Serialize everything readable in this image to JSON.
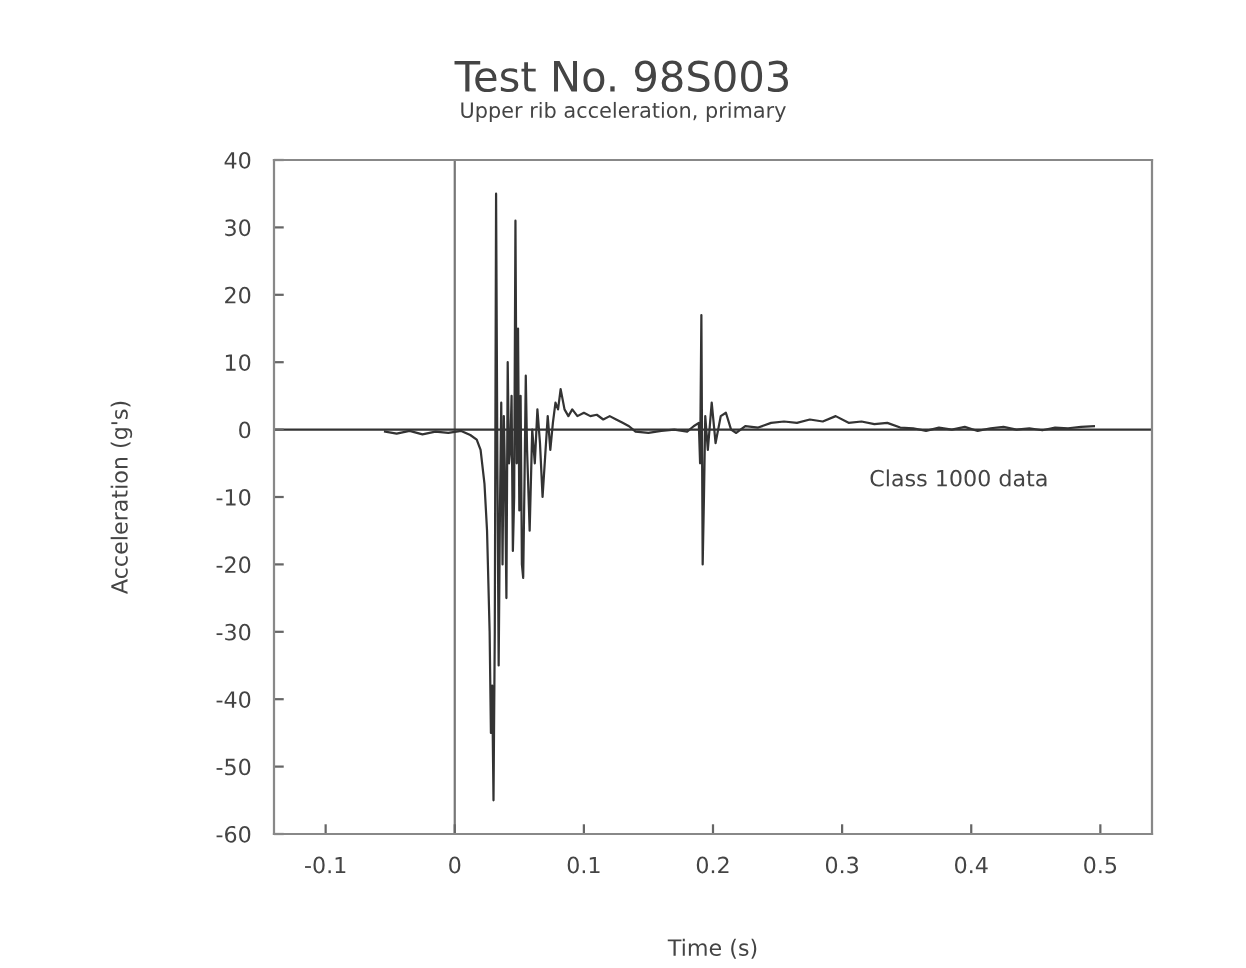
{
  "chart_data": {
    "type": "line",
    "title": "Test No. 98S003",
    "subtitle": "Upper rib acceleration, primary",
    "xlabel": "Time (s)",
    "ylabel": "Acceleration (g's)",
    "xlim": [
      -0.14,
      0.54
    ],
    "ylim": [
      -60,
      40
    ],
    "xticks": [
      -0.1,
      0,
      0.1,
      0.2,
      0.3,
      0.4,
      0.5
    ],
    "yticks": [
      -60,
      -50,
      -40,
      -30,
      -20,
      -10,
      0,
      10,
      20,
      30,
      40
    ],
    "grid": false,
    "legend": false,
    "marker": "none",
    "line_style": "solid",
    "annotations": [
      "Class 1000 data"
    ],
    "ref_lines": [
      {
        "axis": "x",
        "value": 0,
        "color": "#777777"
      },
      {
        "axis": "y",
        "value": 0,
        "color": "#333333"
      }
    ],
    "series": [
      {
        "color": "#333333",
        "x": [
          -0.054,
          -0.045,
          -0.035,
          -0.025,
          -0.015,
          -0.005,
          0.005,
          0.012,
          0.017,
          0.02,
          0.023,
          0.025,
          0.027,
          0.028,
          0.029,
          0.03,
          0.031,
          0.032,
          0.033,
          0.034,
          0.035,
          0.036,
          0.037,
          0.038,
          0.039,
          0.04,
          0.041,
          0.042,
          0.043,
          0.044,
          0.045,
          0.046,
          0.047,
          0.048,
          0.049,
          0.05,
          0.051,
          0.052,
          0.053,
          0.054,
          0.055,
          0.056,
          0.058,
          0.06,
          0.062,
          0.064,
          0.066,
          0.068,
          0.07,
          0.072,
          0.074,
          0.076,
          0.078,
          0.08,
          0.082,
          0.085,
          0.088,
          0.091,
          0.095,
          0.1,
          0.105,
          0.11,
          0.115,
          0.12,
          0.125,
          0.13,
          0.135,
          0.14,
          0.15,
          0.16,
          0.17,
          0.18,
          0.185,
          0.189,
          0.19,
          0.191,
          0.192,
          0.193,
          0.194,
          0.196,
          0.199,
          0.202,
          0.206,
          0.21,
          0.214,
          0.218,
          0.225,
          0.235,
          0.245,
          0.255,
          0.265,
          0.275,
          0.285,
          0.295,
          0.305,
          0.315,
          0.325,
          0.335,
          0.345,
          0.355,
          0.365,
          0.375,
          0.385,
          0.395,
          0.405,
          0.415,
          0.425,
          0.435,
          0.445,
          0.455,
          0.465,
          0.475,
          0.485,
          0.495
        ],
        "values": [
          -0.3,
          -0.6,
          -0.2,
          -0.7,
          -0.3,
          -0.5,
          -0.2,
          -0.8,
          -1.5,
          -3,
          -8,
          -15,
          -30,
          -45,
          -38,
          -55,
          -30,
          35,
          -5,
          -35,
          -12,
          4,
          -20,
          2,
          -8,
          -25,
          10,
          -5,
          -3,
          5,
          -18,
          -10,
          31,
          -5,
          15,
          -12,
          5,
          -20,
          -22,
          -8,
          8,
          -3,
          -15,
          0,
          -5,
          3,
          -2,
          -10,
          -4,
          2,
          -3,
          1,
          4,
          3,
          6,
          3,
          2,
          3,
          2,
          2.5,
          2,
          2.2,
          1.5,
          2,
          1.5,
          1,
          0.5,
          -0.3,
          -0.5,
          -0.2,
          0,
          -0.3,
          0.5,
          1,
          -5,
          17,
          -20,
          -10,
          2,
          -3,
          4,
          -2,
          2,
          2.5,
          0,
          -0.5,
          0.5,
          0.3,
          1,
          1.2,
          1,
          1.5,
          1.2,
          2,
          1,
          1.2,
          0.8,
          1,
          0.3,
          0.2,
          -0.2,
          0.3,
          0,
          0.4,
          -0.2,
          0.2,
          0.4,
          0,
          0.2,
          -0.1,
          0.3,
          0.2,
          0.4,
          0.5
        ]
      }
    ]
  }
}
